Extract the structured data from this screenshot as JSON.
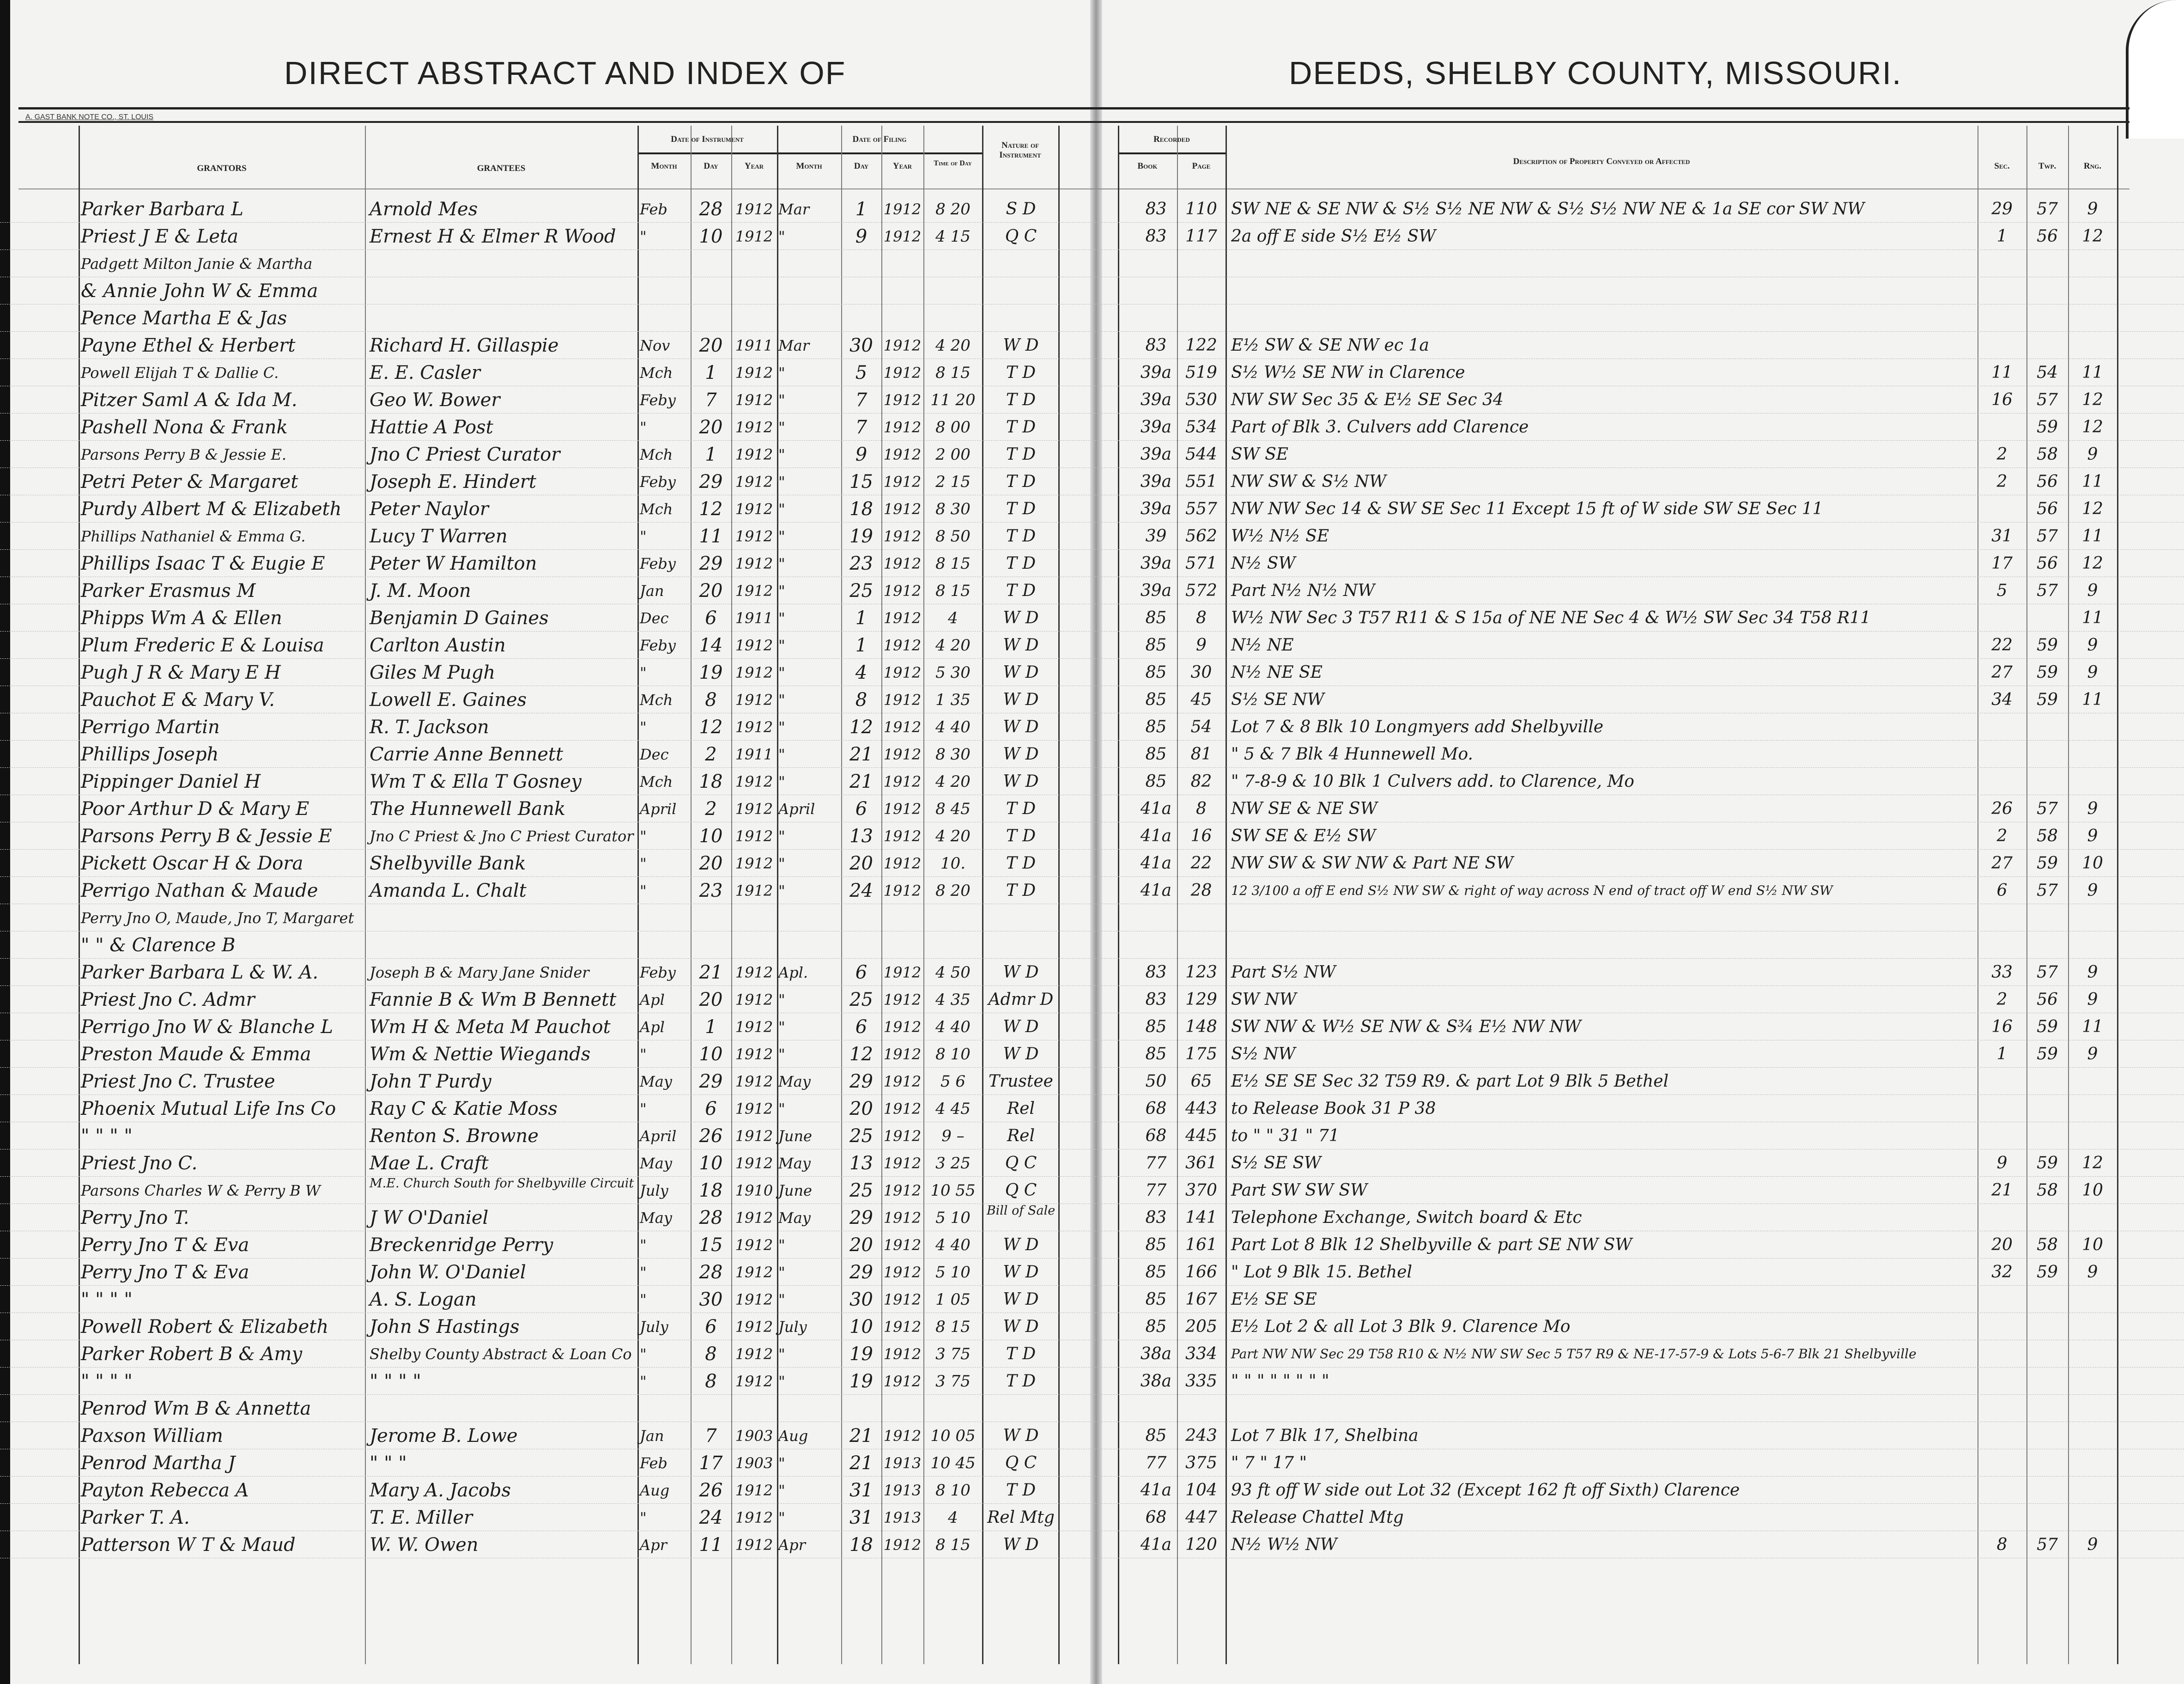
{
  "titles": {
    "left": "DIRECT ABSTRACT AND INDEX OF",
    "right": "DEEDS, SHELBY COUNTY, MISSOURI.",
    "printer": "A. GAST BANK NOTE CO., ST. LOUIS"
  },
  "headers": {
    "grantors": "GRANTORS",
    "grantees": "GRANTEES",
    "date_of_instrument": "Date of Instrument",
    "date_of_filing": "Date of Filing",
    "month": "Month",
    "day": "Day",
    "year": "Year",
    "time_of_day": "Time of Day",
    "nature": "Nature of Instrument",
    "recorded": "Recorded",
    "book": "Book",
    "page": "Page",
    "description": "Description of Property Conveyed or Affected",
    "sec": "Sec.",
    "twp": "Twp.",
    "rng": "Rng."
  },
  "rows": [
    {
      "grantor": "Parker Barbara L",
      "grantee": "Arnold Mes",
      "imon": "Feb",
      "iday": "28",
      "iyr": "1912",
      "fmon": "Mar",
      "fday": "1",
      "fyr": "1912",
      "time": "8 20",
      "nature": "S D",
      "book": "83",
      "page": "110",
      "desc": "SW NE & SE NW & S½ S½ NE NW & S½ S½ NW NE & 1a SE cor SW NW",
      "sec": "29",
      "twp": "57",
      "rng": "9"
    },
    {
      "grantor": "Priest J E & Leta",
      "grantee": "Ernest H & Elmer R Wood",
      "imon": "\"",
      "iday": "10",
      "iyr": "1912",
      "fmon": "\"",
      "fday": "9",
      "fyr": "1912",
      "time": "4 15",
      "nature": "Q C",
      "book": "83",
      "page": "117",
      "desc": "2a off E side S½ E½ SW",
      "sec": "1",
      "twp": "56",
      "rng": "12"
    },
    {
      "grantor": "Padgett Milton Janie & Martha"
    },
    {
      "grantor": "& Annie John W & Emma"
    },
    {
      "grantor": "Pence Martha E & Jas"
    },
    {
      "grantor": "Payne Ethel & Herbert",
      "grantee": "Richard H. Gillaspie",
      "imon": "Nov",
      "iday": "20",
      "iyr": "1911",
      "fmon": "Mar",
      "fday": "30",
      "fyr": "1912",
      "time": "4 20",
      "nature": "W D",
      "book": "83",
      "page": "122",
      "desc": "E½ SW & SE NW ec 1a"
    },
    {
      "grantor": "Powell Elijah T & Dallie C.",
      "grantee": "E. E. Casler",
      "imon": "Mch",
      "iday": "1",
      "iyr": "1912",
      "fmon": "\"",
      "fday": "5",
      "fyr": "1912",
      "time": "8 15",
      "nature": "T D",
      "book": "39a",
      "page": "519",
      "desc": "S½ W½ SE NW   in Clarence",
      "sec": "11",
      "twp": "54",
      "rng": "11"
    },
    {
      "grantor": "Pitzer Saml A & Ida M.",
      "grantee": "Geo W. Bower",
      "imon": "Feby",
      "iday": "7",
      "iyr": "1912",
      "fmon": "\"",
      "fday": "7",
      "fyr": "1912",
      "time": "11 20",
      "nature": "T D",
      "book": "39a",
      "page": "530",
      "desc": "NW SW Sec 35 & E½ SE Sec 34",
      "sec": "16",
      "twp": "57",
      "rng": "12"
    },
    {
      "grantor": "Pashell Nona & Frank",
      "grantee": "Hattie A Post",
      "imon": "\"",
      "iday": "20",
      "iyr": "1912",
      "fmon": "\"",
      "fday": "7",
      "fyr": "1912",
      "time": "8 00",
      "nature": "T D",
      "book": "39a",
      "page": "534",
      "desc": "Part of Blk 3. Culvers add Clarence",
      "twp": "59",
      "rng": "12"
    },
    {
      "grantor": "Parsons Perry B & Jessie E.",
      "grantee": "Jno C Priest Curator",
      "imon": "Mch",
      "iday": "1",
      "iyr": "1912",
      "fmon": "\"",
      "fday": "9",
      "fyr": "1912",
      "time": "2 00",
      "nature": "T D",
      "book": "39a",
      "page": "544",
      "desc": "SW SE",
      "sec": "2",
      "twp": "58",
      "rng": "9"
    },
    {
      "grantor": "Petri Peter & Margaret",
      "grantee": "Joseph E. Hindert",
      "imon": "Feby",
      "iday": "29",
      "iyr": "1912",
      "fmon": "\"",
      "fday": "15",
      "fyr": "1912",
      "time": "2 15",
      "nature": "T D",
      "book": "39a",
      "page": "551",
      "desc": "NW SW & S½ NW",
      "sec": "2",
      "twp": "56",
      "rng": "11"
    },
    {
      "grantor": "Purdy Albert M & Elizabeth",
      "grantee": "Peter Naylor",
      "imon": "Mch",
      "iday": "12",
      "iyr": "1912",
      "fmon": "\"",
      "fday": "18",
      "fyr": "1912",
      "time": "8 30",
      "nature": "T D",
      "book": "39a",
      "page": "557",
      "desc": "NW NW Sec 14 & SW SE Sec 11 Except 15 ft of W side SW SE Sec 11",
      "twp": "56",
      "rng": "12"
    },
    {
      "grantor": "Phillips Nathaniel & Emma G.",
      "grantee": "Lucy T Warren",
      "imon": "\"",
      "iday": "11",
      "iyr": "1912",
      "fmon": "\"",
      "fday": "19",
      "fyr": "1912",
      "time": "8 50",
      "nature": "T D",
      "book": "39",
      "page": "562",
      "desc": "W½ N½ SE",
      "sec": "31",
      "twp": "57",
      "rng": "11"
    },
    {
      "grantor": "Phillips Isaac T & Eugie E",
      "grantee": "Peter W Hamilton",
      "imon": "Feby",
      "iday": "29",
      "iyr": "1912",
      "fmon": "\"",
      "fday": "23",
      "fyr": "1912",
      "time": "8 15",
      "nature": "T D",
      "book": "39a",
      "page": "571",
      "desc": "N½ SW",
      "sec": "17",
      "twp": "56",
      "rng": "12"
    },
    {
      "grantor": "Parker Erasmus M",
      "grantee": "J. M. Moon",
      "imon": "Jan",
      "iday": "20",
      "iyr": "1912",
      "fmon": "\"",
      "fday": "25",
      "fyr": "1912",
      "time": "8 15",
      "nature": "T D",
      "book": "39a",
      "page": "572",
      "desc": "Part N½ N½ NW",
      "sec": "5",
      "twp": "57",
      "rng": "9"
    },
    {
      "grantor": "Phipps Wm A & Ellen",
      "grantee": "Benjamin D Gaines",
      "imon": "Dec",
      "iday": "6",
      "iyr": "1911",
      "fmon": "\"",
      "fday": "1",
      "fyr": "1912",
      "time": "4",
      "nature": "W D",
      "book": "85",
      "page": "8",
      "desc": "W½ NW Sec 3 T57 R11 & S 15a of NE NE Sec 4 & W½ SW Sec 34 T58 R11",
      "rng": "11"
    },
    {
      "grantor": "Plum Frederic E & Louisa",
      "grantee": "Carlton Austin",
      "imon": "Feby",
      "iday": "14",
      "iyr": "1912",
      "fmon": "\"",
      "fday": "1",
      "fyr": "1912",
      "time": "4 20",
      "nature": "W D",
      "book": "85",
      "page": "9",
      "desc": "N½ NE",
      "sec": "22",
      "twp": "59",
      "rng": "9"
    },
    {
      "grantor": "Pugh J R & Mary E H",
      "grantee": "Giles M Pugh",
      "imon": "\"",
      "iday": "19",
      "iyr": "1912",
      "fmon": "\"",
      "fday": "4",
      "fyr": "1912",
      "time": "5 30",
      "nature": "W D",
      "book": "85",
      "page": "30",
      "desc": "N½ NE SE",
      "sec": "27",
      "twp": "59",
      "rng": "9"
    },
    {
      "grantor": "Pauchot E & Mary V.",
      "grantee": "Lowell E. Gaines",
      "imon": "Mch",
      "iday": "8",
      "iyr": "1912",
      "fmon": "\"",
      "fday": "8",
      "fyr": "1912",
      "time": "1 35",
      "nature": "W D",
      "book": "85",
      "page": "45",
      "desc": "S½ SE NW",
      "sec": "34",
      "twp": "59",
      "rng": "11"
    },
    {
      "grantor": "Perrigo Martin",
      "grantee": "R. T. Jackson",
      "imon": "\"",
      "iday": "12",
      "iyr": "1912",
      "fmon": "\"",
      "fday": "12",
      "fyr": "1912",
      "time": "4 40",
      "nature": "W D",
      "book": "85",
      "page": "54",
      "desc": "Lot 7 & 8 Blk 10 Longmyers add Shelbyville"
    },
    {
      "grantor": "Phillips Joseph",
      "grantee": "Carrie Anne Bennett",
      "imon": "Dec",
      "iday": "2",
      "iyr": "1911",
      "fmon": "\"",
      "fday": "21",
      "fyr": "1912",
      "time": "8 30",
      "nature": "W D",
      "book": "85",
      "page": "81",
      "desc": "\" 5 & 7 Blk 4  Hunnewell Mo."
    },
    {
      "grantor": "Pippinger Daniel H",
      "grantee": "Wm T & Ella T Gosney",
      "imon": "Mch",
      "iday": "18",
      "iyr": "1912",
      "fmon": "\"",
      "fday": "21",
      "fyr": "1912",
      "time": "4 20",
      "nature": "W D",
      "book": "85",
      "page": "82",
      "desc": "\" 7-8-9 & 10 Blk 1 Culvers add. to Clarence, Mo"
    },
    {
      "grantor": "Poor Arthur D & Mary E",
      "grantee": "The Hunnewell Bank",
      "imon": "April",
      "iday": "2",
      "iyr": "1912",
      "fmon": "April",
      "fday": "6",
      "fyr": "1912",
      "time": "8 45",
      "nature": "T D",
      "book": "41a",
      "page": "8",
      "desc": "NW SE & NE SW",
      "sec": "26",
      "twp": "57",
      "rng": "9"
    },
    {
      "grantor": "Parsons Perry B & Jessie E",
      "grantee": "Jno C Priest & Jno C Priest Curator",
      "imon": "\"",
      "iday": "10",
      "iyr": "1912",
      "fmon": "\"",
      "fday": "13",
      "fyr": "1912",
      "time": "4 20",
      "nature": "T D",
      "book": "41a",
      "page": "16",
      "desc": "SW SE & E½ SW",
      "sec": "2",
      "twp": "58",
      "rng": "9"
    },
    {
      "grantor": "Pickett Oscar H & Dora",
      "grantee": "Shelbyville Bank",
      "imon": "\"",
      "iday": "20",
      "iyr": "1912",
      "fmon": "\"",
      "fday": "20",
      "fyr": "1912",
      "time": "10.",
      "nature": "T D",
      "book": "41a",
      "page": "22",
      "desc": "NW SW & SW NW & Part NE SW",
      "sec": "27",
      "twp": "59",
      "rng": "10"
    },
    {
      "grantor": "Perrigo Nathan & Maude",
      "grantee": "Amanda L. Chalt",
      "imon": "\"",
      "iday": "23",
      "iyr": "1912",
      "fmon": "\"",
      "fday": "24",
      "fyr": "1912",
      "time": "8 20",
      "nature": "T D",
      "book": "41a",
      "page": "28",
      "desc": "12 3/100 a off E end S½ NW SW & right of way across N end of tract off W end S½ NW SW",
      "sec": "6",
      "twp": "57",
      "rng": "9"
    },
    {
      "grantor": "Perry Jno O, Maude, Jno T, Margaret"
    },
    {
      "grantor": "\" \" & Clarence B"
    },
    {
      "grantor": "Parker Barbara L & W. A.",
      "grantee": "Joseph B & Mary Jane Snider",
      "imon": "Feby",
      "iday": "21",
      "iyr": "1912",
      "fmon": "Apl.",
      "fday": "6",
      "fyr": "1912",
      "time": "4 50",
      "nature": "W D",
      "book": "83",
      "page": "123",
      "desc": "Part S½ NW",
      "sec": "33",
      "twp": "57",
      "rng": "9"
    },
    {
      "grantor": "Priest Jno C. Admr",
      "grantee": "Fannie B & Wm B Bennett",
      "imon": "Apl",
      "iday": "20",
      "iyr": "1912",
      "fmon": "\"",
      "fday": "25",
      "fyr": "1912",
      "time": "4 35",
      "nature": "Admr D",
      "book": "83",
      "page": "129",
      "desc": "SW NW",
      "sec": "2",
      "twp": "56",
      "rng": "9"
    },
    {
      "grantor": "Perrigo Jno W & Blanche L",
      "grantee": "Wm H & Meta M Pauchot",
      "imon": "Apl",
      "iday": "1",
      "iyr": "1912",
      "fmon": "\"",
      "fday": "6",
      "fyr": "1912",
      "time": "4 40",
      "nature": "W D",
      "book": "85",
      "page": "148",
      "desc": "SW NW & W½ SE NW & S¾ E½ NW NW",
      "sec": "16",
      "twp": "59",
      "rng": "11"
    },
    {
      "grantor": "Preston Maude & Emma",
      "grantee": "Wm & Nettie Wiegands",
      "imon": "\"",
      "iday": "10",
      "iyr": "1912",
      "fmon": "\"",
      "fday": "12",
      "fyr": "1912",
      "time": "8 10",
      "nature": "W D",
      "book": "85",
      "page": "175",
      "desc": "S½ NW",
      "sec": "1",
      "twp": "59",
      "rng": "9"
    },
    {
      "grantor": "Priest Jno C. Trustee",
      "grantee": "John T Purdy",
      "imon": "May",
      "iday": "29",
      "iyr": "1912",
      "fmon": "May",
      "fday": "29",
      "fyr": "1912",
      "time": "5 6",
      "nature": "Trustee",
      "book": "50",
      "page": "65",
      "desc": "E½ SE SE Sec 32 T59 R9. & part Lot 9 Blk 5 Bethel"
    },
    {
      "grantor": "Phoenix Mutual Life Ins Co",
      "grantee": "Ray C & Katie Moss",
      "imon": "\"",
      "iday": "6",
      "iyr": "1912",
      "fmon": "\"",
      "fday": "20",
      "fyr": "1912",
      "time": "4 45",
      "nature": "Rel",
      "book": "68",
      "page": "443",
      "desc": "to Release Book 31 P 38"
    },
    {
      "grantor": "\"    \"    \"    \"",
      "grantee": "Renton S. Browne",
      "imon": "April",
      "iday": "26",
      "iyr": "1912",
      "fmon": "June",
      "fday": "25",
      "fyr": "1912",
      "time": "9 –",
      "nature": "Rel",
      "book": "68",
      "page": "445",
      "desc": "to   \"   \"  31 \" 71"
    },
    {
      "grantor": "Priest Jno C.",
      "grantee": "Mae L. Craft",
      "imon": "May",
      "iday": "10",
      "iyr": "1912",
      "fmon": "May",
      "fday": "13",
      "fyr": "1912",
      "time": "3 25",
      "nature": "Q C",
      "book": "77",
      "page": "361",
      "desc": "S½ SE SW",
      "sec": "9",
      "twp": "59",
      "rng": "12"
    },
    {
      "grantor": "Parsons Charles W & Perry B W",
      "grantee": "M.E. Church South for Shelbyville Circuit",
      "imon": "July",
      "iday": "18",
      "iyr": "1910",
      "fmon": "June",
      "fday": "25",
      "fyr": "1912",
      "time": "10 55",
      "nature": "Q C",
      "book": "77",
      "page": "370",
      "desc": "Part SW SW SW",
      "sec": "21",
      "twp": "58",
      "rng": "10"
    },
    {
      "grantor": "Perry Jno T.",
      "grantee": "J W O'Daniel",
      "imon": "May",
      "iday": "28",
      "iyr": "1912",
      "fmon": "May",
      "fday": "29",
      "fyr": "1912",
      "time": "5 10",
      "nature": "Bill of Sale",
      "book": "83",
      "page": "141",
      "desc": "Telephone Exchange, Switch board & Etc"
    },
    {
      "grantor": "Perry Jno T & Eva",
      "grantee": "Breckenridge Perry",
      "imon": "\"",
      "iday": "15",
      "iyr": "1912",
      "fmon": "\"",
      "fday": "20",
      "fyr": "1912",
      "time": "4 40",
      "nature": "W D",
      "book": "85",
      "page": "161",
      "desc": "Part Lot 8 Blk 12 Shelbyville & part SE NW SW",
      "sec": "20",
      "twp": "58",
      "rng": "10"
    },
    {
      "grantor": "Perry Jno T & Eva",
      "grantee": "John W. O'Daniel",
      "imon": "\"",
      "iday": "28",
      "iyr": "1912",
      "fmon": "\"",
      "fday": "29",
      "fyr": "1912",
      "time": "5 10",
      "nature": "W D",
      "book": "85",
      "page": "166",
      "desc": "\" Lot 9 Blk 15. Bethel",
      "sec": "32",
      "twp": "59",
      "rng": "9"
    },
    {
      "grantor": "\"    \"    \"    \"",
      "grantee": "A. S. Logan",
      "imon": "\"",
      "iday": "30",
      "iyr": "1912",
      "fmon": "\"",
      "fday": "30",
      "fyr": "1912",
      "time": "1 05",
      "nature": "W D",
      "book": "85",
      "page": "167",
      "desc": "E½ SE SE"
    },
    {
      "grantor": "Powell Robert & Elizabeth",
      "grantee": "John S Hastings",
      "imon": "July",
      "iday": "6",
      "iyr": "1912",
      "fmon": "July",
      "fday": "10",
      "fyr": "1912",
      "time": "8 15",
      "nature": "W D",
      "book": "85",
      "page": "205",
      "desc": "E½ Lot 2 & all Lot 3 Blk 9. Clarence Mo"
    },
    {
      "grantor": "Parker Robert B & Amy",
      "grantee": "Shelby County Abstract & Loan Co",
      "imon": "\"",
      "iday": "8",
      "iyr": "1912",
      "fmon": "\"",
      "fday": "19",
      "fyr": "1912",
      "time": "3 75",
      "nature": "T D",
      "book": "38a",
      "page": "334",
      "desc": "Part NW NW Sec 29 T58 R10 & N½ NW SW Sec 5 T57 R9 & NE-17-57-9 & Lots 5-6-7 Blk 21 Shelbyville"
    },
    {
      "grantor": "\"    \"    \"    \"",
      "grantee": "\"    \"    \"    \"",
      "imon": "\"",
      "iday": "8",
      "iyr": "1912",
      "fmon": "\"",
      "fday": "19",
      "fyr": "1912",
      "time": "3 75",
      "nature": "T D",
      "book": "38a",
      "page": "335",
      "desc": "\"   \"   \"   \"   \"   \"   \"   \""
    },
    {
      "grantor": "Penrod Wm B & Annetta"
    },
    {
      "grantor": "Paxson William",
      "grantee": "Jerome B. Lowe",
      "imon": "Jan",
      "iday": "7",
      "iyr": "1903",
      "fmon": "Aug",
      "fday": "21",
      "fyr": "1912",
      "time": "10 05",
      "nature": "W D",
      "book": "85",
      "page": "243",
      "desc": "Lot 7 Blk 17, Shelbina"
    },
    {
      "grantor": "Penrod Martha J",
      "grantee": "\"    \"    \"",
      "imon": "Feb",
      "iday": "17",
      "iyr": "1903",
      "fmon": "\"",
      "fday": "21",
      "fyr": "1913",
      "time": "10 45",
      "nature": "Q C",
      "book": "77",
      "page": "375",
      "desc": "\" 7   \" 17   \""
    },
    {
      "grantor": "Payton Rebecca A",
      "grantee": "Mary A. Jacobs",
      "imon": "Aug",
      "iday": "26",
      "iyr": "1912",
      "fmon": "\"",
      "fday": "31",
      "fyr": "1913",
      "time": "8 10",
      "nature": "T D",
      "book": "41a",
      "page": "104",
      "desc": "93 ft off W side out Lot 32 (Except 162 ft off Sixth) Clarence"
    },
    {
      "grantor": "Parker T. A.",
      "grantee": "T. E. Miller",
      "imon": "\"",
      "iday": "24",
      "iyr": "1912",
      "fmon": "\"",
      "fday": "31",
      "fyr": "1913",
      "time": "4",
      "nature": "Rel Mtg",
      "book": "68",
      "page": "447",
      "desc": "Release Chattel Mtg"
    },
    {
      "grantor": "Patterson W T & Maud",
      "grantee": "W. W. Owen",
      "imon": "Apr",
      "iday": "11",
      "iyr": "1912",
      "fmon": "Apr",
      "fday": "18",
      "fyr": "1912",
      "time": "8 15",
      "nature": "W D",
      "book": "41a",
      "page": "120",
      "desc": "N½ W½ NW",
      "sec": "8",
      "twp": "57",
      "rng": "9"
    }
  ]
}
